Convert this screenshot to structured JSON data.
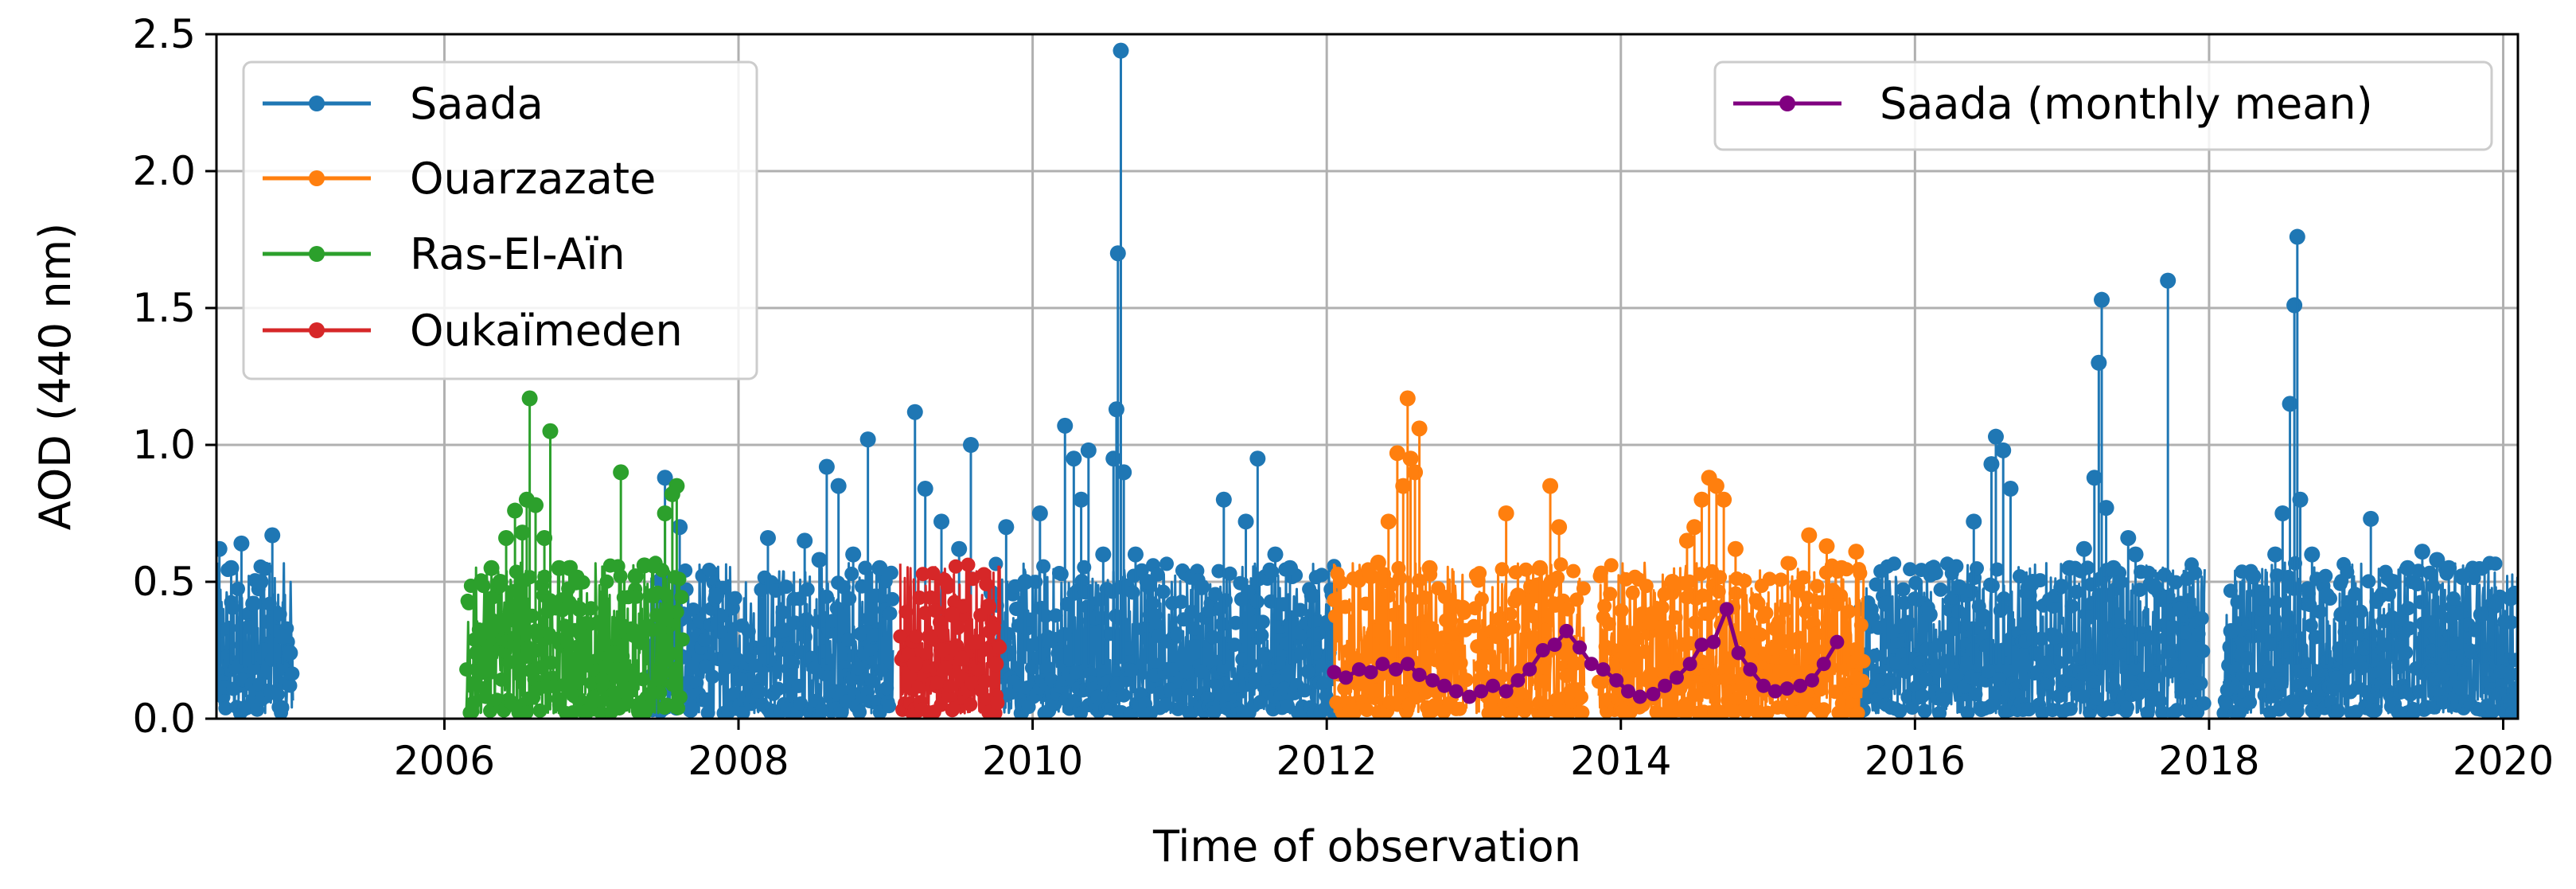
{
  "chart_data": {
    "type": "line",
    "xlabel": "Time of observation",
    "ylabel": "AOD (440 nm)",
    "xlim": [
      2004.45,
      2020.1
    ],
    "ylim": [
      0,
      2.5
    ],
    "x_ticks": [
      2006,
      2008,
      2010,
      2012,
      2014,
      2016,
      2018,
      2020
    ],
    "y_ticks": [
      0.0,
      0.5,
      1.0,
      1.5,
      2.0,
      2.5
    ],
    "x_tick_labels": [
      "2006",
      "2008",
      "2010",
      "2012",
      "2014",
      "2016",
      "2018",
      "2020"
    ],
    "y_tick_labels": [
      "0.0",
      "0.5",
      "1.0",
      "1.5",
      "2.0",
      "2.5"
    ],
    "grid": true,
    "legends": [
      {
        "position": "upper-left",
        "entries": [
          "Saada",
          "Ouarzazate",
          "Ras-El-Aïn",
          "Oukaïmeden"
        ]
      },
      {
        "position": "upper-right",
        "entries": [
          "Saada (monthly mean)"
        ]
      }
    ],
    "series": [
      {
        "name": "Saada",
        "color": "#1f77b4",
        "segments": [
          [
            2004.45,
            2004.97
          ],
          [
            2007.4,
            2009.05
          ],
          [
            2009.75,
            2012.05
          ],
          [
            2015.62,
            2017.97
          ],
          [
            2018.1,
            2020.1
          ]
        ],
        "points": [
          [
            2004.47,
            0.62
          ],
          [
            2004.55,
            0.55
          ],
          [
            2004.62,
            0.64
          ],
          [
            2004.7,
            0.42
          ],
          [
            2004.75,
            0.5
          ],
          [
            2004.83,
            0.67
          ],
          [
            2004.9,
            0.3
          ],
          [
            2004.95,
            0.24
          ],
          [
            2007.5,
            0.88
          ],
          [
            2007.6,
            0.7
          ],
          [
            2007.85,
            0.45
          ],
          [
            2008.2,
            0.66
          ],
          [
            2008.45,
            0.65
          ],
          [
            2008.55,
            0.58
          ],
          [
            2008.6,
            0.92
          ],
          [
            2008.68,
            0.85
          ],
          [
            2008.78,
            0.6
          ],
          [
            2008.88,
            1.02
          ],
          [
            2008.96,
            0.55
          ],
          [
            2009.2,
            1.12
          ],
          [
            2009.27,
            0.84
          ],
          [
            2009.38,
            0.72
          ],
          [
            2009.5,
            0.62
          ],
          [
            2009.58,
            1.0
          ],
          [
            2009.72,
            0.46
          ],
          [
            2009.82,
            0.7
          ],
          [
            2009.95,
            0.5
          ],
          [
            2010.05,
            0.75
          ],
          [
            2010.22,
            1.07
          ],
          [
            2010.28,
            0.95
          ],
          [
            2010.33,
            0.8
          ],
          [
            2010.38,
            0.98
          ],
          [
            2010.48,
            0.6
          ],
          [
            2010.55,
            0.95
          ],
          [
            2010.57,
            1.13
          ],
          [
            2010.58,
            1.7
          ],
          [
            2010.6,
            2.44
          ],
          [
            2010.62,
            0.9
          ],
          [
            2010.7,
            0.6
          ],
          [
            2010.78,
            0.5
          ],
          [
            2011.15,
            0.48
          ],
          [
            2011.3,
            0.8
          ],
          [
            2011.45,
            0.72
          ],
          [
            2011.53,
            0.95
          ],
          [
            2011.65,
            0.6
          ],
          [
            2011.75,
            0.55
          ],
          [
            2011.9,
            0.45
          ],
          [
            2012.0,
            0.35
          ],
          [
            2015.8,
            0.42
          ],
          [
            2015.95,
            0.35
          ],
          [
            2016.1,
            0.38
          ],
          [
            2016.3,
            0.48
          ],
          [
            2016.4,
            0.72
          ],
          [
            2016.52,
            0.93
          ],
          [
            2016.55,
            1.03
          ],
          [
            2016.6,
            0.98
          ],
          [
            2016.65,
            0.84
          ],
          [
            2016.8,
            0.5
          ],
          [
            2016.95,
            0.3
          ],
          [
            2017.05,
            0.55
          ],
          [
            2017.15,
            0.62
          ],
          [
            2017.22,
            0.88
          ],
          [
            2017.25,
            1.3
          ],
          [
            2017.27,
            1.53
          ],
          [
            2017.3,
            0.77
          ],
          [
            2017.35,
            0.55
          ],
          [
            2017.45,
            0.66
          ],
          [
            2017.5,
            0.6
          ],
          [
            2017.63,
            0.48
          ],
          [
            2017.72,
            1.6
          ],
          [
            2017.8,
            0.4
          ],
          [
            2018.15,
            0.32
          ],
          [
            2018.3,
            0.52
          ],
          [
            2018.45,
            0.6
          ],
          [
            2018.5,
            0.75
          ],
          [
            2018.55,
            1.15
          ],
          [
            2018.58,
            1.51
          ],
          [
            2018.6,
            1.76
          ],
          [
            2018.62,
            0.8
          ],
          [
            2018.7,
            0.6
          ],
          [
            2018.8,
            0.45
          ],
          [
            2018.9,
            0.38
          ],
          [
            2019.1,
            0.73
          ],
          [
            2019.25,
            0.5
          ],
          [
            2019.35,
            0.55
          ],
          [
            2019.45,
            0.61
          ],
          [
            2019.55,
            0.58
          ],
          [
            2019.63,
            0.55
          ],
          [
            2019.72,
            0.52
          ],
          [
            2019.85,
            0.38
          ],
          [
            2019.95,
            0.42
          ],
          [
            2020.05,
            0.44
          ]
        ]
      },
      {
        "name": "Ouarzazate",
        "color": "#ff7f0e",
        "segments": [
          [
            2012.05,
            2012.95
          ],
          [
            2013.0,
            2013.75
          ],
          [
            2013.85,
            2015.65
          ]
        ],
        "points": [
          [
            2012.3,
            0.52
          ],
          [
            2012.35,
            0.57
          ],
          [
            2012.42,
            0.72
          ],
          [
            2012.48,
            0.97
          ],
          [
            2012.52,
            0.85
          ],
          [
            2012.55,
            1.17
          ],
          [
            2012.57,
            0.95
          ],
          [
            2012.6,
            0.9
          ],
          [
            2012.63,
            1.06
          ],
          [
            2012.7,
            0.55
          ],
          [
            2013.22,
            0.75
          ],
          [
            2013.3,
            0.45
          ],
          [
            2013.45,
            0.55
          ],
          [
            2013.52,
            0.85
          ],
          [
            2013.58,
            0.7
          ],
          [
            2014.2,
            0.35
          ],
          [
            2014.35,
            0.5
          ],
          [
            2014.45,
            0.65
          ],
          [
            2014.5,
            0.7
          ],
          [
            2014.55,
            0.8
          ],
          [
            2014.6,
            0.88
          ],
          [
            2014.65,
            0.85
          ],
          [
            2014.7,
            0.8
          ],
          [
            2014.78,
            0.62
          ],
          [
            2015.2,
            0.48
          ],
          [
            2015.28,
            0.67
          ],
          [
            2015.4,
            0.63
          ],
          [
            2015.5,
            0.55
          ],
          [
            2015.6,
            0.61
          ]
        ]
      },
      {
        "name": "Ras-El-Aïn",
        "color": "#2ca02c",
        "segments": [
          [
            2006.15,
            2007.62
          ]
        ],
        "points": [
          [
            2006.22,
            0.24
          ],
          [
            2006.32,
            0.55
          ],
          [
            2006.38,
            0.5
          ],
          [
            2006.42,
            0.66
          ],
          [
            2006.48,
            0.76
          ],
          [
            2006.53,
            0.68
          ],
          [
            2006.56,
            0.8
          ],
          [
            2006.58,
            1.17
          ],
          [
            2006.62,
            0.78
          ],
          [
            2006.68,
            0.66
          ],
          [
            2006.72,
            1.05
          ],
          [
            2006.78,
            0.55
          ],
          [
            2006.85,
            0.55
          ],
          [
            2006.92,
            0.4
          ],
          [
            2007.05,
            0.35
          ],
          [
            2007.2,
            0.9
          ],
          [
            2007.3,
            0.52
          ],
          [
            2007.36,
            0.56
          ],
          [
            2007.42,
            0.45
          ],
          [
            2007.5,
            0.75
          ],
          [
            2007.55,
            0.82
          ],
          [
            2007.58,
            0.85
          ]
        ]
      },
      {
        "name": "Oukaïmeden",
        "color": "#d62728",
        "segments": [
          [
            2009.1,
            2009.78
          ]
        ],
        "points": [
          [
            2009.2,
            0.2
          ],
          [
            2009.3,
            0.3
          ],
          [
            2009.38,
            0.25
          ],
          [
            2009.45,
            0.38
          ],
          [
            2009.52,
            0.22
          ],
          [
            2009.62,
            0.28
          ],
          [
            2009.7,
            0.41
          ],
          [
            2009.75,
            0.2
          ]
        ]
      },
      {
        "name": "Saada (monthly mean)",
        "color": "#800080",
        "type": "line-markers",
        "x": [
          2012.05,
          2012.13,
          2012.22,
          2012.3,
          2012.38,
          2012.47,
          2012.55,
          2012.63,
          2012.72,
          2012.8,
          2012.88,
          2012.97,
          2013.05,
          2013.13,
          2013.22,
          2013.3,
          2013.38,
          2013.47,
          2013.55,
          2013.63,
          2013.72,
          2013.8,
          2013.88,
          2013.97,
          2014.05,
          2014.13,
          2014.22,
          2014.3,
          2014.38,
          2014.47,
          2014.55,
          2014.63,
          2014.72,
          2014.8,
          2014.88,
          2014.97,
          2015.05,
          2015.13,
          2015.22,
          2015.3,
          2015.38,
          2015.47
        ],
        "y": [
          0.17,
          0.15,
          0.18,
          0.17,
          0.2,
          0.18,
          0.2,
          0.16,
          0.14,
          0.12,
          0.1,
          0.08,
          0.1,
          0.12,
          0.1,
          0.14,
          0.18,
          0.25,
          0.27,
          0.32,
          0.26,
          0.2,
          0.18,
          0.14,
          0.1,
          0.08,
          0.09,
          0.12,
          0.15,
          0.2,
          0.27,
          0.28,
          0.4,
          0.24,
          0.18,
          0.12,
          0.1,
          0.11,
          0.12,
          0.14,
          0.2,
          0.28
        ]
      }
    ]
  }
}
